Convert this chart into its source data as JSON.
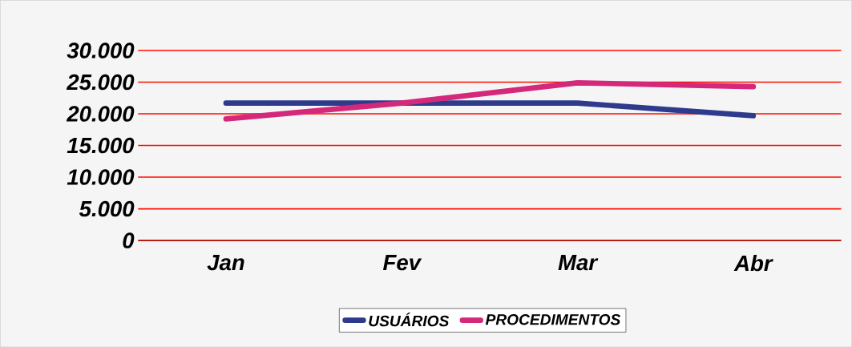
{
  "chart_data": {
    "type": "line",
    "categories": [
      "Jan",
      "Fev",
      "Mar",
      "Abr"
    ],
    "series": [
      {
        "name": "USUÁRIOS",
        "color": "#2e3a8c",
        "values": [
          21700,
          21700,
          21700,
          19700
        ]
      },
      {
        "name": "PROCEDIMENTOS",
        "color": "#d4287a",
        "values": [
          19200,
          21700,
          24900,
          24300
        ]
      }
    ],
    "ylim": [
      0,
      30000
    ],
    "yticks": [
      {
        "value": 0,
        "label": "0"
      },
      {
        "value": 5000,
        "label": "5.000"
      },
      {
        "value": 10000,
        "label": "10.000"
      },
      {
        "value": 15000,
        "label": "15.000"
      },
      {
        "value": 20000,
        "label": "20.000"
      },
      {
        "value": 25000,
        "label": "25.000"
      },
      {
        "value": 30000,
        "label": "30.000"
      }
    ],
    "grid": "y",
    "legend": "bottom",
    "marker": "none",
    "line_style": "solid"
  }
}
